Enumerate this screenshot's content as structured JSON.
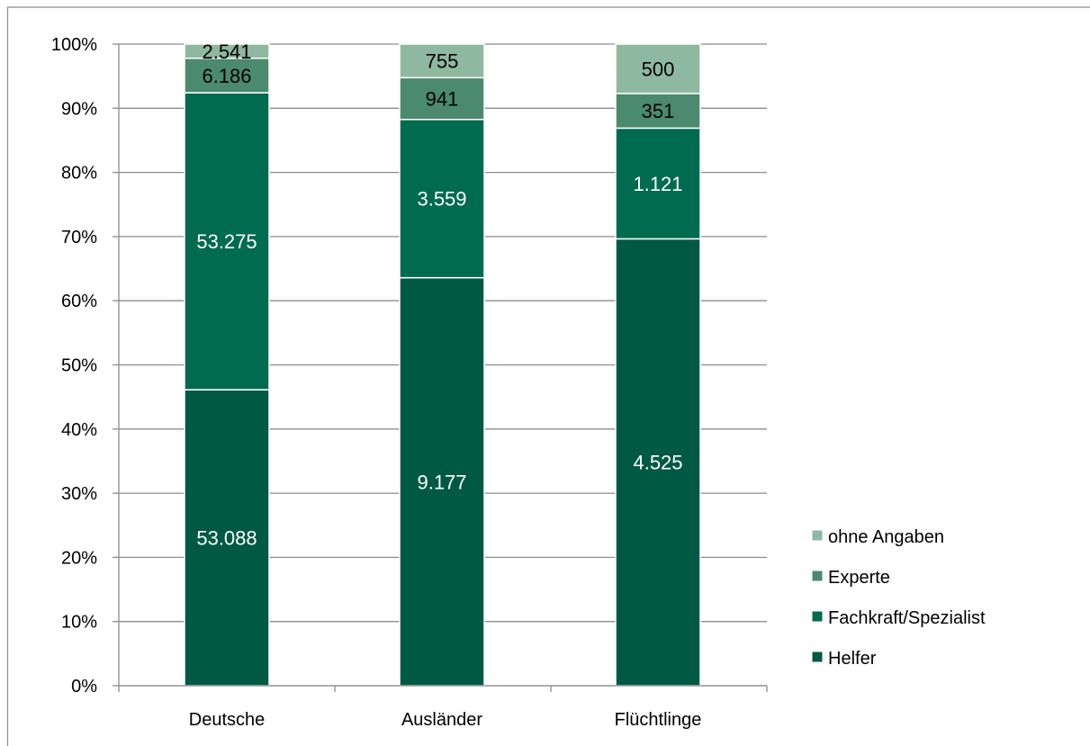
{
  "chart_data": {
    "type": "bar",
    "stacked": true,
    "normalized": true,
    "title": "",
    "xlabel": "",
    "ylabel": "",
    "ylim": [
      0,
      100
    ],
    "yticks": [
      "0%",
      "10%",
      "20%",
      "30%",
      "40%",
      "50%",
      "60%",
      "70%",
      "80%",
      "90%",
      "100%"
    ],
    "categories": [
      "Deutsche",
      "Ausländer",
      "Flüchtlinge"
    ],
    "series": [
      {
        "name": "Helfer",
        "color": "#005a43",
        "label_color": "#ffffff",
        "values": [
          53088,
          9177,
          4525
        ],
        "labels": [
          "53.088",
          "9.177",
          "4.525"
        ]
      },
      {
        "name": "Fachkraft/Spezialist",
        "color": "#006b4e",
        "label_color": "#ffffff",
        "values": [
          53275,
          3559,
          1121
        ],
        "labels": [
          "53.275",
          "3.559",
          "1.121"
        ]
      },
      {
        "name": "Experte",
        "color": "#4b8a6f",
        "label_color": "#000000",
        "values": [
          6186,
          941,
          351
        ],
        "labels": [
          "6.186",
          "941",
          "351"
        ]
      },
      {
        "name": "ohne Angaben",
        "color": "#8fb8a0",
        "label_color": "#000000",
        "values": [
          2541,
          755,
          500
        ],
        "labels": [
          "2.541",
          "755",
          "500"
        ]
      }
    ],
    "legend_position": "right",
    "grid": true
  }
}
